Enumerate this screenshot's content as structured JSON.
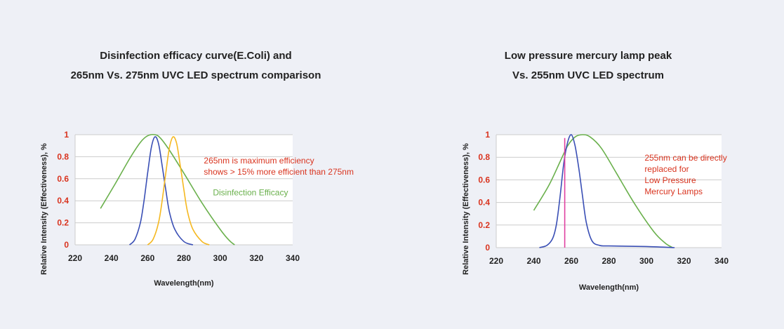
{
  "colors": {
    "background": "#eef0f6",
    "plot_bg": "#ffffff",
    "grid": "#cccccc",
    "green": "#6ab04c",
    "blue": "#3a4fb5",
    "yellow": "#f5b820",
    "pink": "#e040a0",
    "tick_y": "#d9341f",
    "annotation_red": "#d9341f"
  },
  "chart_data": [
    {
      "type": "line",
      "title_lines": [
        "Disinfection efficacy curve(E.Coli) and",
        "265nm Vs. 275nm UVC LED spectrum comparison"
      ],
      "xlabel": "Wavelength(nm)",
      "ylabel": "Relative Intensity (Effectiveness), %",
      "xlim": [
        220,
        340
      ],
      "ylim": [
        0,
        1
      ],
      "x_ticks": [
        "220",
        "240",
        "260",
        "280",
        "300",
        "320",
        "340"
      ],
      "y_ticks": [
        "0",
        "0.2",
        "0.4",
        "0.6",
        "0.8",
        "1"
      ],
      "grid": true,
      "annotations": [
        {
          "lines": [
            "265nm is maximum efficiency",
            "shows > 15% more efficient than 275nm"
          ],
          "color": "#d9341f",
          "x": 291,
          "y": 0.74
        },
        {
          "lines": [
            "Disinfection Efficacy"
          ],
          "color": "#6ab04c",
          "x": 296,
          "y": 0.45
        }
      ],
      "series": [
        {
          "color": "#6ab04c",
          "x": [
            234,
            242,
            250,
            256,
            260,
            264,
            267,
            272,
            280,
            290,
            300,
            305,
            308
          ],
          "y": [
            0.33,
            0.55,
            0.78,
            0.93,
            0.99,
            1.0,
            0.97,
            0.86,
            0.65,
            0.38,
            0.14,
            0.04,
            0.0
          ]
        },
        {
          "color": "#3a4fb5",
          "x": [
            250,
            253,
            256,
            258,
            260,
            262,
            264,
            266,
            268,
            270,
            272,
            275,
            280,
            285
          ],
          "y": [
            0.0,
            0.05,
            0.2,
            0.4,
            0.65,
            0.88,
            0.98,
            0.92,
            0.72,
            0.5,
            0.3,
            0.14,
            0.03,
            0.0
          ]
        },
        {
          "color": "#f5b820",
          "x": [
            260,
            263,
            266,
            268,
            270,
            272,
            274,
            276,
            278,
            280,
            282,
            285,
            290,
            294
          ],
          "y": [
            0.0,
            0.05,
            0.2,
            0.4,
            0.65,
            0.88,
            0.98,
            0.92,
            0.72,
            0.5,
            0.3,
            0.14,
            0.03,
            0.0
          ]
        }
      ]
    },
    {
      "type": "line",
      "title_lines": [
        "Low pressure mercury lamp peak",
        "Vs. 255nm UVC LED spectrum"
      ],
      "xlabel": "Wavelength(nm)",
      "ylabel": "Relative Intensity (Effectiveness), %",
      "xlim": [
        220,
        340
      ],
      "ylim": [
        0,
        1
      ],
      "x_ticks": [
        "220",
        "240",
        "260",
        "280",
        "300",
        "320",
        "340"
      ],
      "y_ticks": [
        "0",
        "0.2",
        "0.4",
        "0.6",
        "0.8",
        "1"
      ],
      "grid": true,
      "annotations": [
        {
          "lines": [
            "255nm can be directly",
            "replaced for",
            "Low Pressure",
            "Mercury Lamps"
          ],
          "color": "#d9341f",
          "x": 299,
          "y": 0.77
        }
      ],
      "series": [
        {
          "color": "#6ab04c",
          "x": [
            240,
            248,
            254,
            258,
            262,
            266,
            270,
            276,
            284,
            294,
            304,
            310,
            314
          ],
          "y": [
            0.33,
            0.55,
            0.76,
            0.9,
            0.98,
            1.0,
            0.98,
            0.88,
            0.66,
            0.38,
            0.14,
            0.04,
            0.0
          ]
        },
        {
          "color": "#3a4fb5",
          "x": [
            243,
            247,
            250,
            252,
            254,
            256,
            258,
            260,
            262,
            264,
            266,
            268,
            271,
            275,
            280,
            300,
            315
          ],
          "y": [
            0.0,
            0.02,
            0.08,
            0.2,
            0.45,
            0.75,
            0.93,
            1.0,
            0.9,
            0.7,
            0.45,
            0.22,
            0.06,
            0.02,
            0.015,
            0.01,
            0.0
          ]
        },
        {
          "color": "#e040a0",
          "x": [
            256.5,
            256.5
          ],
          "y": [
            0.0,
            0.97
          ]
        }
      ]
    }
  ]
}
